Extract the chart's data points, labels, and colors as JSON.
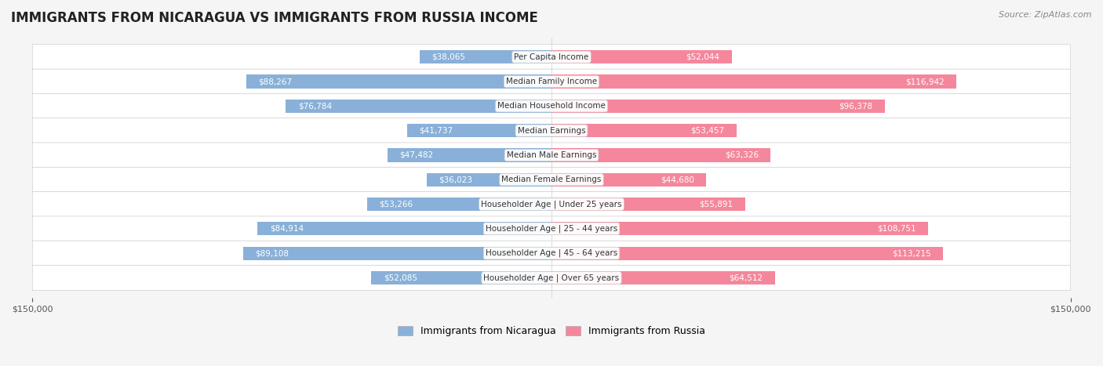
{
  "title": "IMMIGRANTS FROM NICARAGUA VS IMMIGRANTS FROM RUSSIA INCOME",
  "source": "Source: ZipAtlas.com",
  "categories": [
    "Per Capita Income",
    "Median Family Income",
    "Median Household Income",
    "Median Earnings",
    "Median Male Earnings",
    "Median Female Earnings",
    "Householder Age | Under 25 years",
    "Householder Age | 25 - 44 years",
    "Householder Age | 45 - 64 years",
    "Householder Age | Over 65 years"
  ],
  "nicaragua_values": [
    38065,
    88267,
    76784,
    41737,
    47482,
    36023,
    53266,
    84914,
    89108,
    52085
  ],
  "russia_values": [
    52044,
    116942,
    96378,
    53457,
    63326,
    44680,
    55891,
    108751,
    113215,
    64512
  ],
  "nicaragua_labels": [
    "$38,065",
    "$88,267",
    "$76,784",
    "$41,737",
    "$47,482",
    "$36,023",
    "$53,266",
    "$84,914",
    "$89,108",
    "$52,085"
  ],
  "russia_labels": [
    "$52,044",
    "$116,942",
    "$96,378",
    "$53,457",
    "$63,326",
    "$44,680",
    "$55,891",
    "$108,751",
    "$113,215",
    "$64,512"
  ],
  "nicaragua_color": "#89b0d8",
  "russia_color": "#f4879c",
  "nicaragua_color_dark": "#5b8fbf",
  "russia_color_dark": "#e8607a",
  "max_value": 150000,
  "legend_nicaragua": "Immigrants from Nicaragua",
  "legend_russia": "Immigrants from Russia",
  "background_color": "#f5f5f5",
  "row_bg_color": "#ffffff",
  "bar_height": 0.55,
  "label_color_inside": "#ffffff",
  "label_color_outside": "#555555"
}
